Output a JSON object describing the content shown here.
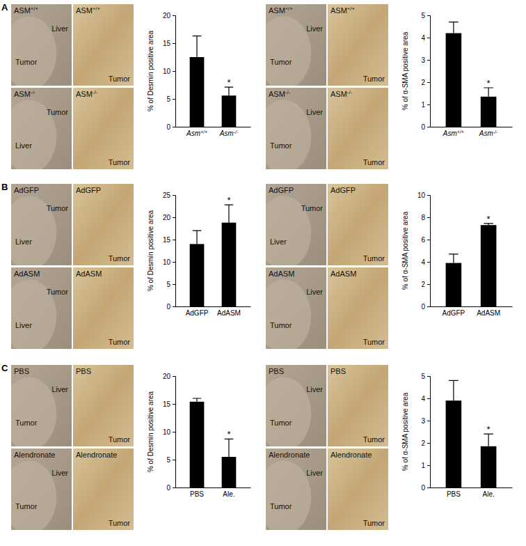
{
  "figure": {
    "panels": [
      {
        "label": "A",
        "groups": [
          {
            "images": [
              {
                "labels": [
                  "ASM+/+",
                  "Liver",
                  "Tumor"
                ]
              },
              {
                "labels": [
                  "ASM+/+",
                  "Tumor"
                ]
              },
              {
                "labels": [
                  "ASM-/-",
                  "Tumor",
                  "Liver"
                ]
              },
              {
                "labels": [
                  "ASM-/-",
                  "Tumor"
                ]
              }
            ]
          },
          {
            "images": [
              {
                "labels": [
                  "ASM+/+",
                  "Liver",
                  "Tumor"
                ]
              },
              {
                "labels": [
                  "ASM+/+",
                  "Tumor"
                ]
              },
              {
                "labels": [
                  "ASM-/-",
                  "Liver",
                  "Tumor"
                ]
              },
              {
                "labels": [
                  "ASM-/-",
                  "Tumor"
                ]
              }
            ]
          }
        ]
      },
      {
        "label": "B",
        "groups": [
          {
            "images": [
              {
                "labels": [
                  "AdGFP",
                  "Tumor",
                  "Liver"
                ]
              },
              {
                "labels": [
                  "AdGFP",
                  "Tumor"
                ]
              },
              {
                "labels": [
                  "AdASM",
                  "Tumor",
                  "Liver"
                ]
              },
              {
                "labels": [
                  "AdASM",
                  "Tumor"
                ]
              }
            ]
          },
          {
            "images": [
              {
                "labels": [
                  "AdGFP",
                  "Tumor",
                  "Liver"
                ]
              },
              {
                "labels": [
                  "AdGFP",
                  "Tumor"
                ]
              },
              {
                "labels": [
                  "AdASM",
                  "Liver",
                  "Tumor"
                ]
              },
              {
                "labels": [
                  "AdASM",
                  "Tumor"
                ]
              }
            ]
          }
        ]
      },
      {
        "label": "C",
        "groups": [
          {
            "images": [
              {
                "labels": [
                  "PBS",
                  "Liver",
                  "Tumor"
                ]
              },
              {
                "labels": [
                  "PBS",
                  "Tumor"
                ]
              },
              {
                "labels": [
                  "Alendronate",
                  "Liver",
                  "Tumor"
                ]
              },
              {
                "labels": [
                  "Alendronate",
                  "Tumor"
                ]
              }
            ]
          },
          {
            "images": [
              {
                "labels": [
                  "PBS",
                  "Liver",
                  "Tumor"
                ]
              },
              {
                "labels": [
                  "PBS",
                  "Tumor"
                ]
              },
              {
                "labels": [
                  "Alendronate",
                  "Liver",
                  "Tumor"
                ]
              },
              {
                "labels": [
                  "Alendronate",
                  "Tumor"
                ]
              }
            ]
          }
        ]
      }
    ]
  },
  "chart_data": [
    {
      "type": "bar",
      "y_label": "% of Desmin positive area",
      "categories": [
        "Asm+/+",
        "Asm-/-"
      ],
      "values": [
        12.5,
        5.6
      ],
      "errors": [
        3.8,
        1.5
      ],
      "color": "#000000",
      "ylim": [
        0,
        20
      ],
      "yticks": [
        0,
        5,
        10,
        15,
        20
      ],
      "annotations": [
        {
          "category": "Asm-/-",
          "text": "*"
        }
      ]
    },
    {
      "type": "bar",
      "y_label": "% of α-SMA positive area",
      "categories": [
        "Asm+/+",
        "Asm-/-"
      ],
      "values": [
        4.2,
        1.35
      ],
      "errors": [
        0.5,
        0.4
      ],
      "color": "#000000",
      "ylim": [
        0,
        5
      ],
      "yticks": [
        0,
        1,
        2,
        3,
        4,
        5
      ],
      "annotations": [
        {
          "category": "Asm-/-",
          "text": "*"
        }
      ]
    },
    {
      "type": "bar",
      "y_label": "% of Desmin positive area",
      "categories": [
        "AdGFP",
        "AdASM"
      ],
      "values": [
        14,
        18.8
      ],
      "errors": [
        3,
        4
      ],
      "color": "#000000",
      "ylim": [
        0,
        25
      ],
      "yticks": [
        0,
        5,
        10,
        15,
        20,
        25
      ],
      "annotations": [
        {
          "category": "AdASM",
          "text": "*"
        }
      ]
    },
    {
      "type": "bar",
      "y_label": "% of α-SMA positive area",
      "categories": [
        "AdGFP",
        "AdASM"
      ],
      "values": [
        3.9,
        7.3
      ],
      "errors": [
        0.8,
        0.15
      ],
      "color": "#000000",
      "ylim": [
        0,
        10
      ],
      "yticks": [
        0,
        2,
        4,
        6,
        8,
        10
      ],
      "annotations": [
        {
          "category": "AdASM",
          "text": "*"
        }
      ]
    },
    {
      "type": "bar",
      "y_label": "% of Desmin positive area",
      "categories": [
        "PBS",
        "Ale."
      ],
      "values": [
        15.4,
        5.5
      ],
      "errors": [
        0.6,
        3.2
      ],
      "color": "#000000",
      "ylim": [
        0,
        20
      ],
      "yticks": [
        0,
        5,
        10,
        15,
        20
      ],
      "annotations": [
        {
          "category": "Ale.",
          "text": "*"
        }
      ]
    },
    {
      "type": "bar",
      "y_label": "% of α-SMA positive area",
      "categories": [
        "PBS",
        "Ale."
      ],
      "values": [
        3.9,
        1.85
      ],
      "errors": [
        0.9,
        0.55
      ],
      "color": "#000000",
      "ylim": [
        0,
        5
      ],
      "yticks": [
        0,
        1,
        2,
        3,
        4,
        5
      ],
      "annotations": [
        {
          "category": "Ale.",
          "text": "*"
        }
      ]
    }
  ]
}
